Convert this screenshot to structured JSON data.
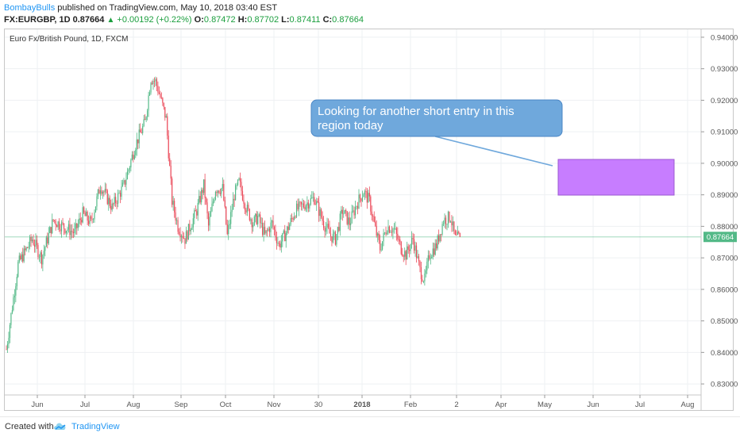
{
  "header": {
    "author": "BombayBulls",
    "published_text": " published on TradingView.com, May 10, 2018 03:40 EST",
    "symbol": "FX:EURGBP, 1D",
    "last": "0.87664",
    "arrow": "▲",
    "change": "+0.00192 (+0.22%)",
    "o_label": "O:",
    "o_value": "0.87472",
    "h_label": "H:",
    "h_value": "0.87702",
    "l_label": "L:",
    "l_value": "0.87411",
    "c_label": "C:",
    "c_value": "0.87664"
  },
  "footer": {
    "created_with": "Created with",
    "brand": "TradingView"
  },
  "colors": {
    "up": "#53b987",
    "down": "#eb4d5c",
    "annotation_box": "#c77dff",
    "callout": "#6fa8dc",
    "price_line": "#53b987"
  },
  "chart_data": {
    "type": "candlestick",
    "title": "Euro Fx/British Pound, 1D, FXCM",
    "y_ticks": [
      "0.83000",
      "0.84000",
      "0.85000",
      "0.86000",
      "0.87000",
      "0.88000",
      "0.89000",
      "0.90000",
      "0.91000",
      "0.92000",
      "0.93000",
      "0.94000"
    ],
    "ylim": [
      0.8265,
      0.9425
    ],
    "x_ticks": [
      "Jun",
      "Jul",
      "Aug",
      "Sep",
      "Oct",
      "Nov",
      "30",
      "2018",
      "Feb",
      "2",
      "Apr",
      "May",
      "Jun",
      "Jul",
      "Aug"
    ],
    "x_tick_bold": [
      "2018"
    ],
    "last_price_label": "0.87664",
    "last_price": 0.87664,
    "close_path": [
      [
        0,
        0.841
      ],
      [
        10,
        0.868
      ],
      [
        22,
        0.876
      ],
      [
        30,
        0.87
      ],
      [
        40,
        0.882
      ],
      [
        48,
        0.88
      ],
      [
        58,
        0.878
      ],
      [
        65,
        0.884
      ],
      [
        72,
        0.881
      ],
      [
        80,
        0.893
      ],
      [
        90,
        0.886
      ],
      [
        100,
        0.893
      ],
      [
        110,
        0.906
      ],
      [
        118,
        0.913
      ],
      [
        123,
        0.927
      ],
      [
        127,
        0.926
      ],
      [
        131,
        0.921
      ],
      [
        136,
        0.914
      ],
      [
        141,
        0.888
      ],
      [
        146,
        0.88
      ],
      [
        152,
        0.876
      ],
      [
        162,
        0.885
      ],
      [
        168,
        0.893
      ],
      [
        172,
        0.88
      ],
      [
        178,
        0.892
      ],
      [
        184,
        0.892
      ],
      [
        188,
        0.877
      ],
      [
        194,
        0.89
      ],
      [
        198,
        0.894
      ],
      [
        204,
        0.886
      ],
      [
        210,
        0.881
      ],
      [
        214,
        0.883
      ],
      [
        220,
        0.877
      ],
      [
        226,
        0.881
      ],
      [
        232,
        0.874
      ],
      [
        238,
        0.878
      ],
      [
        246,
        0.885
      ],
      [
        254,
        0.887
      ],
      [
        262,
        0.889
      ],
      [
        270,
        0.881
      ],
      [
        276,
        0.877
      ],
      [
        280,
        0.876
      ],
      [
        286,
        0.885
      ],
      [
        292,
        0.881
      ],
      [
        298,
        0.887
      ],
      [
        304,
        0.891
      ],
      [
        309,
        0.888
      ],
      [
        314,
        0.879
      ],
      [
        318,
        0.873
      ],
      [
        324,
        0.88
      ],
      [
        330,
        0.879
      ],
      [
        336,
        0.873
      ],
      [
        340,
        0.871
      ],
      [
        346,
        0.876
      ],
      [
        352,
        0.866
      ],
      [
        356,
        0.863
      ],
      [
        360,
        0.871
      ],
      [
        366,
        0.874
      ],
      [
        372,
        0.882
      ],
      [
        378,
        0.883
      ],
      [
        382,
        0.876
      ],
      [
        386,
        0.8766
      ]
    ],
    "annotations": [
      {
        "type": "callout",
        "text_lines": [
          "Looking for another short entry in this",
          "region today"
        ]
      },
      {
        "type": "rectangle",
        "price_range": [
          0.8905,
          0.9015
        ],
        "date_range": [
          "2018-05-18",
          "2018-08-05"
        ]
      }
    ]
  }
}
